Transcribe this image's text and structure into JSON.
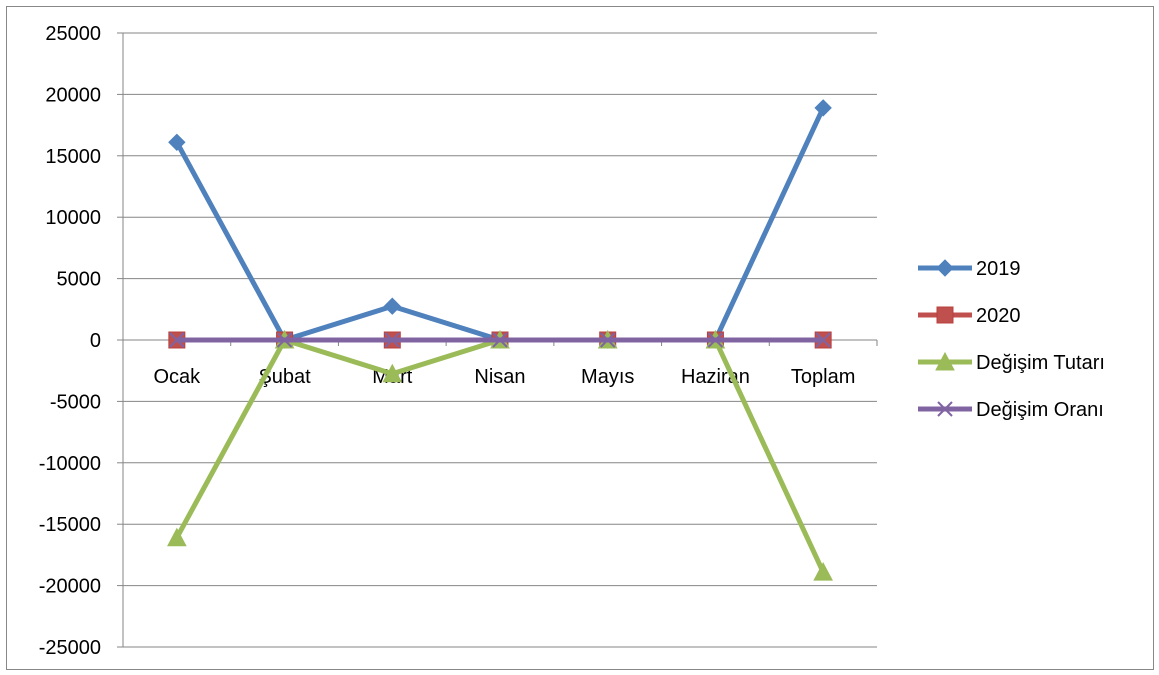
{
  "chart_data": {
    "type": "line",
    "title": "",
    "xlabel": "",
    "ylabel": "",
    "categories": [
      "Ocak",
      "Şubat",
      "Mart",
      "Nisan",
      "Mayıs",
      "Haziran",
      "Toplam"
    ],
    "ylim": [
      -25000,
      25000
    ],
    "ytick_step": 5000,
    "yticks": [
      "25000",
      "20000",
      "15000",
      "10000",
      "5000",
      "0",
      "-5000",
      "-10000",
      "-15000",
      "-20000",
      "-25000"
    ],
    "grid": true,
    "legend_position": "right",
    "series": [
      {
        "name": "2019",
        "values": [
          16100,
          0,
          2750,
          0,
          0,
          0,
          18900
        ],
        "color": "#4F81BD",
        "marker": "diamond"
      },
      {
        "name": "2020",
        "values": [
          0,
          0,
          0,
          0,
          0,
          0,
          0
        ],
        "color": "#C0504D",
        "marker": "square"
      },
      {
        "name": "Değişim Tutarı",
        "values": [
          -16100,
          0,
          -2750,
          0,
          0,
          0,
          -18900
        ],
        "color": "#9BBB59",
        "marker": "triangle"
      },
      {
        "name": "Değişim Oranı",
        "values": [
          0,
          0,
          0,
          0,
          0,
          0,
          0
        ],
        "color": "#8064A2",
        "marker": "x"
      }
    ]
  }
}
